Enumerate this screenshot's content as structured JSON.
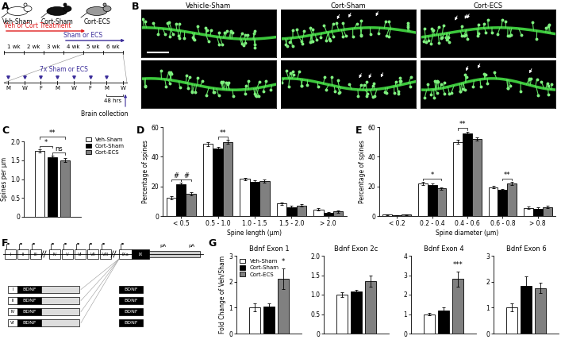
{
  "panel_labels": [
    "A",
    "B",
    "C",
    "D",
    "E",
    "F",
    "G"
  ],
  "diagram_a": {
    "groups": [
      {
        "label": "Veh-Sham",
        "color": "#ffffff"
      },
      {
        "label": "Cort-Sham",
        "color": "#111111"
      },
      {
        "label": "Cort-ECS",
        "color": "#9a9a9a"
      }
    ],
    "treatment": {
      "label": "Veh or Cort Treatment",
      "color": "#e02020"
    },
    "intervention": {
      "label": "Sham or ECS",
      "color": "#3b2d9a"
    },
    "weeks": [
      "1 wk",
      "2 wk",
      "3 wk",
      "4 wk",
      "5 wk",
      "6 wk"
    ],
    "days": [
      "M",
      "W",
      "F",
      "M",
      "W",
      "F",
      "M",
      "W"
    ],
    "sessions": "7x Sham or ECS",
    "interval": "48 hrs",
    "endpoint": "Brain collection"
  },
  "images_b": {
    "titles": [
      "Vehicle-Sham",
      "Cort-Sham",
      "Cort-ECS"
    ],
    "rows": 2
  },
  "diagram_f": {
    "exons": [
      "I",
      "II",
      "III",
      "IV",
      "V",
      "VI",
      "VII",
      "VIII",
      "IXa",
      "IX"
    ],
    "polyA": [
      "pA",
      "pA"
    ],
    "transcripts": [
      "I",
      "II",
      "IV",
      "VI"
    ],
    "protein": "BDNF"
  },
  "chart_data": [
    {
      "type": "bar",
      "ylabel": "Spines per µm",
      "categories": [
        null
      ],
      "series": [
        {
          "name": "Veh-Sham",
          "color": "#ffffff",
          "values": [
            1.75
          ],
          "errors": [
            0.05
          ]
        },
        {
          "name": "Cort-Sham",
          "color": "#000000",
          "values": [
            1.57
          ],
          "errors": [
            0.05
          ]
        },
        {
          "name": "Cort-ECS",
          "color": "#808080",
          "values": [
            1.5
          ],
          "errors": [
            0.05
          ]
        }
      ],
      "ylim": [
        0,
        2.0
      ],
      "yticks": [
        0,
        0.5,
        1.0,
        1.5,
        2.0
      ],
      "legend": "upper left",
      "tick_labels": "y",
      "annotations": [
        {
          "text": "*",
          "series": [
            "Veh-Sham",
            "Cort-Sham"
          ]
        },
        {
          "text": "ns",
          "series": [
            "Cort-Sham",
            "Cort-ECS"
          ]
        },
        {
          "text": "**",
          "series": [
            "Veh-Sham",
            "Cort-ECS"
          ]
        }
      ]
    },
    {
      "type": "bar",
      "xlabel": "Spine length (µm)",
      "ylabel": "Percentage of spines",
      "categories": [
        "< 0.5",
        "0.5 - 1.0",
        "1.0 - 1.5",
        "1.5 - 2.0",
        "> 2.0"
      ],
      "series": [
        {
          "name": "Veh-Sham",
          "color": "#ffffff",
          "values": [
            12.5,
            48.5,
            25,
            8.5,
            4.5
          ],
          "errors": [
            1,
            1.2,
            0.8,
            0.8,
            0.7
          ]
        },
        {
          "name": "Cort-Sham",
          "color": "#000000",
          "values": [
            21.5,
            45.5,
            23,
            6,
            2
          ],
          "errors": [
            1,
            1,
            1,
            0.7,
            0.5
          ]
        },
        {
          "name": "Cort-ECS",
          "color": "#808080",
          "values": [
            15,
            50,
            23.5,
            7,
            3
          ],
          "errors": [
            1,
            1.2,
            1,
            0.8,
            0.6
          ]
        }
      ],
      "ylim": [
        0,
        60
      ],
      "yticks": [
        0,
        20,
        40,
        60
      ],
      "annotations": [
        {
          "text": "#",
          "category": "< 0.5",
          "series": [
            "Veh-Sham",
            "Cort-Sham"
          ]
        },
        {
          "text": "#",
          "category": "< 0.5",
          "series": [
            "Cort-Sham",
            "Cort-ECS"
          ]
        },
        {
          "text": "**",
          "category": "0.5 - 1.0",
          "series": [
            "Cort-Sham",
            "Cort-ECS"
          ]
        }
      ]
    },
    {
      "type": "bar",
      "xlabel": "Spine diameter (µm)",
      "ylabel": "Percentage of spines",
      "categories": [
        "< 0.2",
        "0.2 - 0.4",
        "0.4 - 0.6",
        "0.6 - 0.8",
        "> 0.8"
      ],
      "series": [
        {
          "name": "Veh-Sham",
          "color": "#ffffff",
          "values": [
            1,
            22,
            50,
            19.5,
            5.5
          ],
          "errors": [
            0.3,
            1,
            1.5,
            1,
            0.7
          ]
        },
        {
          "name": "Cort-Sham",
          "color": "#000000",
          "values": [
            0.5,
            21,
            55.5,
            17.5,
            5
          ],
          "errors": [
            0.2,
            1.2,
            1.5,
            0.8,
            0.8
          ]
        },
        {
          "name": "Cort-ECS",
          "color": "#808080",
          "values": [
            1,
            18.5,
            52,
            22,
            6
          ],
          "errors": [
            0.3,
            1,
            1.2,
            1,
            0.8
          ]
        }
      ],
      "ylim": [
        0,
        60
      ],
      "yticks": [
        0,
        20,
        40,
        60
      ],
      "annotations": [
        {
          "text": "*",
          "category": "0.2 - 0.4",
          "series": [
            "Veh-Sham",
            "Cort-ECS"
          ]
        },
        {
          "text": "**",
          "category": "0.4 - 0.6",
          "series": [
            "Veh-Sham",
            "Cort-Sham"
          ]
        },
        {
          "text": "**",
          "category": "0.6 - 0.8",
          "series": [
            "Cort-Sham",
            "Cort-ECS"
          ]
        }
      ]
    },
    {
      "type": "bar",
      "title": "Bdnf Exon 1",
      "ylabel": "Fold Change of Veh/Sham",
      "categories": [
        null
      ],
      "series": [
        {
          "name": "Veh-Sham",
          "color": "#ffffff",
          "values": [
            1.0
          ],
          "errors": [
            0.15
          ]
        },
        {
          "name": "Cort-Sham",
          "color": "#000000",
          "values": [
            1.05
          ],
          "errors": [
            0.12
          ]
        },
        {
          "name": "Cort-ECS",
          "color": "#808080",
          "values": [
            2.1
          ],
          "errors": [
            0.4
          ]
        }
      ],
      "ylim": [
        0,
        3
      ],
      "yticks": [
        0,
        1,
        2,
        3
      ],
      "legend": "upper left",
      "tick_labels": "y",
      "annotations": [
        {
          "text": "*",
          "series": [
            "Cort-ECS"
          ]
        }
      ]
    },
    {
      "type": "bar",
      "title": "Bdnf Exon 2c",
      "categories": [
        null
      ],
      "series": [
        {
          "name": "Veh-Sham",
          "color": "#ffffff",
          "values": [
            1.0
          ],
          "errors": [
            0.07
          ]
        },
        {
          "name": "Cort-Sham",
          "color": "#000000",
          "values": [
            1.08
          ],
          "errors": [
            0.05
          ]
        },
        {
          "name": "Cort-ECS",
          "color": "#808080",
          "values": [
            1.35
          ],
          "errors": [
            0.15
          ]
        }
      ],
      "ylim": [
        0,
        2.0
      ],
      "yticks": [
        0,
        0.5,
        1.0,
        1.5,
        2.0
      ],
      "tick_labels": "y"
    },
    {
      "type": "bar",
      "title": "Bdnf Exon 4",
      "categories": [
        null
      ],
      "series": [
        {
          "name": "Veh-Sham",
          "color": "#ffffff",
          "values": [
            1.0
          ],
          "errors": [
            0.05
          ]
        },
        {
          "name": "Cort-Sham",
          "color": "#000000",
          "values": [
            1.2
          ],
          "errors": [
            0.15
          ]
        },
        {
          "name": "Cort-ECS",
          "color": "#808080",
          "values": [
            2.8
          ],
          "errors": [
            0.4
          ]
        }
      ],
      "ylim": [
        0,
        4
      ],
      "yticks": [
        0,
        1,
        2,
        3,
        4
      ],
      "tick_labels": "y",
      "annotations": [
        {
          "text": "***",
          "series": [
            "Cort-ECS"
          ]
        }
      ]
    },
    {
      "type": "bar",
      "title": "Bdnf Exon 6",
      "categories": [
        null
      ],
      "series": [
        {
          "name": "Veh-Sham",
          "color": "#ffffff",
          "values": [
            1.0
          ],
          "errors": [
            0.15
          ]
        },
        {
          "name": "Cort-Sham",
          "color": "#000000",
          "values": [
            1.85
          ],
          "errors": [
            0.35
          ]
        },
        {
          "name": "Cort-ECS",
          "color": "#808080",
          "values": [
            1.75
          ],
          "errors": [
            0.2
          ]
        }
      ],
      "ylim": [
        0,
        3
      ],
      "yticks": [
        0,
        1,
        2,
        3
      ],
      "tick_labels": "y"
    }
  ]
}
